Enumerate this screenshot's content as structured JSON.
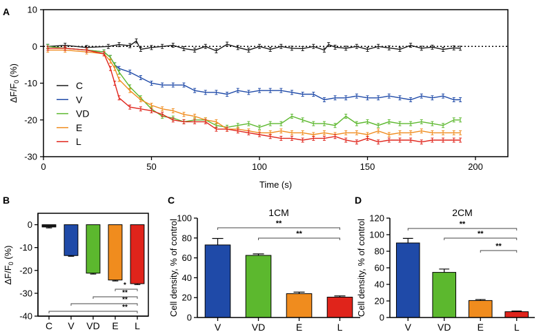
{
  "colors": {
    "C": "#1a1a1a",
    "V": "#1f4aa8",
    "VD": "#5cb82e",
    "E": "#f08c1e",
    "L": "#e0241b"
  },
  "chart_data": [
    {
      "panel": "A",
      "type": "line",
      "xlabel": "Time (s)",
      "ylabel_main": "ΔF/F",
      "ylabel_sub": "0",
      "ylabel_unit": " (%)",
      "xlim": [
        0,
        215
      ],
      "ylim": [
        -30,
        10
      ],
      "xticks": [
        0,
        50,
        100,
        150,
        200
      ],
      "yticks": [
        10,
        0,
        -10,
        -20,
        -30
      ],
      "reference_line": 0,
      "series": [
        {
          "name": "C",
          "color": "#1a1a1a",
          "x": [
            2,
            10,
            20,
            30,
            35,
            40,
            43,
            45,
            50,
            55,
            60,
            65,
            70,
            75,
            80,
            85,
            90,
            95,
            100,
            105,
            110,
            115,
            120,
            125,
            130,
            132,
            135,
            140,
            145,
            150,
            155,
            160,
            165,
            170,
            175,
            180,
            185,
            190,
            193
          ],
          "y": [
            0,
            0.3,
            -0.3,
            0,
            0.5,
            0.2,
            1.5,
            -0.8,
            -0.3,
            0,
            0.3,
            -0.6,
            -1,
            0,
            -1.2,
            0.6,
            -0.3,
            -1,
            0,
            -0.8,
            0,
            -0.5,
            -0.6,
            0,
            -1,
            0.5,
            -0.2,
            -0.5,
            0,
            -0.8,
            0,
            -0.4,
            -0.8,
            0.3,
            -0.5,
            -0.2,
            -0.8,
            -0.4,
            -0.5
          ]
        },
        {
          "name": "V",
          "color": "#1f4aa8",
          "x": [
            2,
            10,
            20,
            28,
            31,
            33,
            35,
            40,
            45,
            50,
            55,
            60,
            65,
            70,
            75,
            80,
            85,
            90,
            95,
            100,
            105,
            110,
            115,
            120,
            125,
            130,
            135,
            140,
            145,
            150,
            155,
            160,
            165,
            170,
            175,
            180,
            185,
            190,
            193
          ],
          "y": [
            0,
            -0.5,
            -1,
            -1.5,
            -3,
            -5,
            -6,
            -7,
            -8.5,
            -10,
            -10.5,
            -10.5,
            -10.5,
            -12,
            -12.5,
            -12.5,
            -13,
            -12,
            -12.5,
            -12,
            -12,
            -12,
            -12.5,
            -13,
            -13,
            -14.5,
            -14,
            -14,
            -13.5,
            -14,
            -14,
            -13.5,
            -14,
            -14.5,
            -13.5,
            -14,
            -13.5,
            -14.5,
            -14.5
          ]
        },
        {
          "name": "VD",
          "color": "#5cb82e",
          "x": [
            2,
            10,
            20,
            28,
            31,
            33,
            35,
            40,
            45,
            50,
            55,
            60,
            65,
            70,
            75,
            80,
            85,
            90,
            95,
            100,
            105,
            110,
            115,
            120,
            125,
            130,
            135,
            140,
            145,
            150,
            155,
            160,
            165,
            170,
            175,
            180,
            185,
            190,
            193
          ],
          "y": [
            0,
            -0.5,
            -1,
            -1.5,
            -3,
            -5,
            -7,
            -11,
            -14,
            -17,
            -19,
            -19.5,
            -20.5,
            -20,
            -20,
            -21.5,
            -22,
            -21.5,
            -21,
            -22,
            -21,
            -21,
            -19,
            -20,
            -21,
            -21,
            -21.5,
            -19,
            -21,
            -20.5,
            -21.5,
            -20.5,
            -21,
            -21,
            -20.5,
            -21,
            -21.5,
            -20,
            -20
          ]
        },
        {
          "name": "E",
          "color": "#f08c1e",
          "x": [
            2,
            10,
            20,
            28,
            31,
            33,
            35,
            40,
            45,
            50,
            55,
            60,
            65,
            70,
            75,
            80,
            85,
            90,
            95,
            100,
            105,
            110,
            115,
            120,
            125,
            130,
            135,
            140,
            145,
            150,
            155,
            160,
            165,
            170,
            175,
            180,
            185,
            190,
            193
          ],
          "y": [
            -1,
            -1,
            -1.5,
            -2,
            -4,
            -6,
            -9,
            -12,
            -14.5,
            -16,
            -17,
            -17.5,
            -18.5,
            -19,
            -20,
            -20.5,
            -22.5,
            -22.5,
            -23,
            -23.5,
            -23.5,
            -23,
            -23.5,
            -23.5,
            -24,
            -23.5,
            -24,
            -23.5,
            -23.5,
            -24,
            -23,
            -24,
            -23.5,
            -23.5,
            -23,
            -23.5,
            -23.5,
            -23.5,
            -23.5
          ]
        },
        {
          "name": "L",
          "color": "#e0241b",
          "x": [
            2,
            10,
            20,
            28,
            31,
            33,
            35,
            40,
            45,
            50,
            55,
            60,
            65,
            70,
            75,
            80,
            85,
            90,
            95,
            100,
            105,
            110,
            115,
            120,
            125,
            130,
            135,
            140,
            145,
            150,
            155,
            160,
            165,
            170,
            175,
            180,
            185,
            190,
            193
          ],
          "y": [
            -0.5,
            -0.5,
            -1,
            -2,
            -6,
            -10,
            -14,
            -16.5,
            -17,
            -17.5,
            -18.5,
            -20,
            -20.5,
            -20.5,
            -20.5,
            -22.5,
            -22.5,
            -23,
            -23.5,
            -24,
            -24.5,
            -25,
            -25,
            -25.5,
            -25,
            -25,
            -24.5,
            -25.5,
            -26,
            -25,
            -26,
            -25.5,
            -25.5,
            -25.5,
            -26,
            -25.5,
            -25.5,
            -25.5,
            -25.5
          ]
        }
      ]
    },
    {
      "panel": "B",
      "type": "bar",
      "ylabel_main": "ΔF/F",
      "ylabel_sub": "0",
      "ylabel_unit": " (%)",
      "categories": [
        "C",
        "V",
        "VD",
        "E",
        "L"
      ],
      "values": [
        -1,
        -13.5,
        -21.2,
        -24.2,
        -25.8
      ],
      "errors": [
        0.4,
        0.3,
        0.4,
        0.4,
        0.4
      ],
      "colors": [
        "#1a1a1a",
        "#1f4aa8",
        "#5cb82e",
        "#f08c1e",
        "#e0241b"
      ],
      "ylim": [
        -40,
        5
      ],
      "yticks": [
        0,
        -10,
        -20,
        -30,
        -40
      ],
      "significance": [
        {
          "from": 3,
          "to": 4,
          "label": "*"
        },
        {
          "from": 2,
          "to": 4,
          "label": "**"
        },
        {
          "from": 1,
          "to": 4,
          "label": "**"
        },
        {
          "from": 0,
          "to": 4,
          "label": "**"
        }
      ]
    },
    {
      "panel": "C",
      "type": "bar",
      "title": "1CM",
      "ylabel": "Cell density, % of control",
      "categories": [
        "V",
        "VD",
        "E",
        "L"
      ],
      "values": [
        73,
        62.5,
        24,
        20.5
      ],
      "errors": [
        6.5,
        1.5,
        1.5,
        1.2
      ],
      "colors": [
        "#1f4aa8",
        "#5cb82e",
        "#f08c1e",
        "#e0241b"
      ],
      "ylim": [
        0,
        100
      ],
      "yticks": [
        0,
        20,
        40,
        60,
        80,
        100
      ],
      "significance": [
        {
          "from": 0,
          "to": 3,
          "label": "**"
        },
        {
          "from": 1,
          "to": 3,
          "label": "**"
        }
      ]
    },
    {
      "panel": "D",
      "type": "bar",
      "title": "2CM",
      "ylabel": "Cell density, % of control",
      "categories": [
        "V",
        "VD",
        "E",
        "L"
      ],
      "values": [
        90,
        54.5,
        20.5,
        7
      ],
      "errors": [
        5.5,
        4,
        1.2,
        0.8
      ],
      "colors": [
        "#1f4aa8",
        "#5cb82e",
        "#f08c1e",
        "#e0241b"
      ],
      "ylim": [
        0,
        120
      ],
      "yticks": [
        0,
        20,
        40,
        60,
        80,
        100,
        120
      ],
      "significance": [
        {
          "from": 0,
          "to": 3,
          "label": "**"
        },
        {
          "from": 1,
          "to": 3,
          "label": "**"
        },
        {
          "from": 2,
          "to": 3,
          "label": "**"
        }
      ]
    }
  ]
}
